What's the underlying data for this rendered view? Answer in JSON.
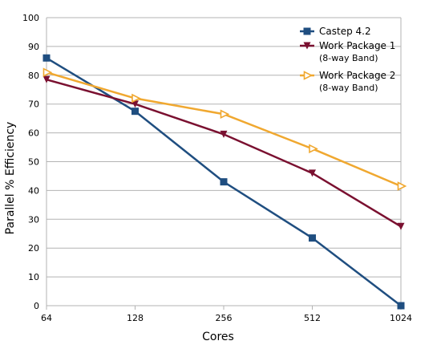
{
  "chart_data": {
    "type": "line",
    "x": [
      "64",
      "128",
      "256",
      "512",
      "1024"
    ],
    "xlabel": "Cores",
    "ylabel": "Parallel % Efficiency",
    "ylim": [
      0,
      100
    ],
    "yticks": [
      0,
      10,
      20,
      30,
      40,
      50,
      60,
      70,
      80,
      90,
      100
    ],
    "grid": true,
    "legend_position": "top-right",
    "series": [
      {
        "name": "Castep 4.2",
        "subtitle": "",
        "color": "#1f4e80",
        "marker": "square",
        "values": [
          86,
          67.5,
          43,
          23.5,
          0
        ]
      },
      {
        "name": "Work Package 1",
        "subtitle": "(8-way Band)",
        "color": "#7a1030",
        "marker": "triangle-down",
        "values": [
          78.5,
          70,
          59.5,
          46,
          27.5
        ]
      },
      {
        "name": "Work Package 2",
        "subtitle": "(8-way Band)",
        "color": "#f0a830",
        "marker": "triangle-right",
        "values": [
          81,
          72,
          66.5,
          54.5,
          41.5
        ]
      }
    ]
  }
}
